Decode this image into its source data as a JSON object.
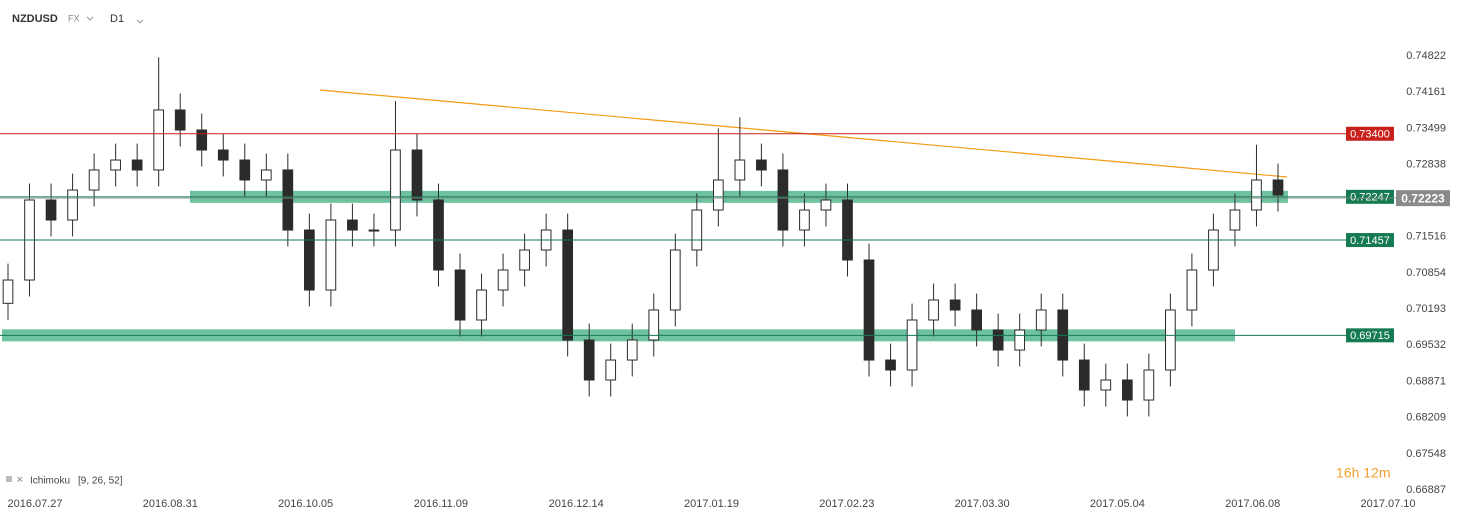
{
  "chart_data": {
    "type": "candlestick",
    "symbol": "NZDUSD",
    "market": "FX",
    "timeframe": "D1",
    "indicator": "Ichimoku",
    "indicator_params": "[9, 26, 52]",
    "timer": "16h 12m",
    "categories": [
      "2016.07.27",
      "2016.08.31",
      "2016.10.05",
      "2016.11.09",
      "2016.12.14",
      "2017.01.19",
      "2017.02.23",
      "2017.03.30",
      "2017.05.04",
      "2017.06.08",
      "2017.07.10"
    ],
    "ylim": [
      0.66887,
      0.75663
    ],
    "yticks": [
      0.74822,
      0.74161,
      0.73499,
      0.72838,
      0.71516,
      0.70854,
      0.70193,
      0.69532,
      0.68871,
      0.68209,
      0.67548,
      0.66887
    ],
    "up_color": "#ffffff",
    "down_color": "#2b2b2b",
    "open": [
      0.703,
      0.70726,
      0.72189,
      0.71823,
      0.72372,
      0.72738,
      0.7292,
      0.72738,
      0.73835,
      0.73469,
      0.73103,
      0.7292,
      0.72555,
      0.72738,
      0.7164,
      0.70543,
      0.71823,
      0.7164,
      0.7164,
      0.73103,
      0.72189,
      0.70909,
      0.69995,
      0.70543,
      0.70909,
      0.71275,
      0.7164,
      0.69629,
      0.68898,
      0.69263,
      0.69629,
      0.70178,
      0.71275,
      0.72006,
      0.72555,
      0.7292,
      0.72738,
      0.7164,
      0.72006,
      0.72189,
      0.71092,
      0.69263,
      0.69081,
      0.69995,
      0.70361,
      0.70178,
      0.69812,
      0.69446,
      0.69812,
      0.70178,
      0.69263,
      0.68715,
      0.68898,
      0.68532,
      0.69081,
      0.70178,
      0.70909,
      0.7164,
      0.72006,
      0.72555
    ],
    "high": [
      0.71026,
      0.72489,
      0.72489,
      0.72672,
      0.73038,
      0.7322,
      0.7322,
      0.748,
      0.74135,
      0.73769,
      0.73403,
      0.7322,
      0.73038,
      0.73038,
      0.7194,
      0.72123,
      0.72123,
      0.7194,
      0.74,
      0.73403,
      0.72489,
      0.71209,
      0.70843,
      0.71209,
      0.71575,
      0.7194,
      0.7194,
      0.69929,
      0.69563,
      0.69929,
      0.70478,
      0.71575,
      0.72306,
      0.735,
      0.737,
      0.7322,
      0.73038,
      0.72306,
      0.72489,
      0.72489,
      0.71392,
      0.69563,
      0.70295,
      0.70661,
      0.70661,
      0.70478,
      0.70112,
      0.70112,
      0.70478,
      0.70478,
      0.69563,
      0.69198,
      0.69198,
      0.69381,
      0.70478,
      0.71209,
      0.7194,
      0.72306,
      0.732,
      0.72855
    ],
    "low": [
      0.7,
      0.70426,
      0.71523,
      0.71523,
      0.72072,
      0.72438,
      0.72438,
      0.72438,
      0.73169,
      0.72803,
      0.7262,
      0.72255,
      0.72255,
      0.7134,
      0.70243,
      0.70243,
      0.7134,
      0.7134,
      0.7134,
      0.71889,
      0.70609,
      0.69695,
      0.69695,
      0.70243,
      0.70609,
      0.70975,
      0.69329,
      0.68598,
      0.68598,
      0.68963,
      0.69329,
      0.69878,
      0.70975,
      0.71706,
      0.72255,
      0.72438,
      0.7134,
      0.7134,
      0.71706,
      0.70792,
      0.68963,
      0.68781,
      0.68781,
      0.69695,
      0.69878,
      0.69512,
      0.69146,
      0.69146,
      0.69512,
      0.68963,
      0.68415,
      0.68415,
      0.68232,
      0.68232,
      0.68781,
      0.69878,
      0.70609,
      0.7134,
      0.71706,
      0.7198
    ],
    "close": [
      0.70726,
      0.72189,
      0.71823,
      0.72372,
      0.72738,
      0.7292,
      0.72738,
      0.73835,
      0.73469,
      0.73103,
      0.7292,
      0.72555,
      0.72738,
      0.7164,
      0.70543,
      0.71823,
      0.7164,
      0.7164,
      0.73103,
      0.72189,
      0.70909,
      0.69995,
      0.70543,
      0.70909,
      0.71275,
      0.7164,
      0.69629,
      0.68898,
      0.69263,
      0.69629,
      0.70178,
      0.71275,
      0.72006,
      0.72555,
      0.7292,
      0.72738,
      0.7164,
      0.72006,
      0.72189,
      0.71092,
      0.69263,
      0.69081,
      0.69995,
      0.70361,
      0.70178,
      0.69812,
      0.69446,
      0.69812,
      0.70178,
      0.69263,
      0.68715,
      0.68898,
      0.68532,
      0.69081,
      0.70178,
      0.70909,
      0.7164,
      0.72006,
      0.72555,
      0.7228
    ],
    "levels": [
      {
        "value": 0.734,
        "label": "0.73400",
        "color": "#c8211b"
      },
      {
        "value": 0.72247,
        "color": "#167a52",
        "zone": true
      },
      {
        "value": 0.71457,
        "color": "#167a52"
      },
      {
        "value": 0.69715,
        "color": "#167a52",
        "zone": true
      }
    ],
    "last": 0.72223,
    "last_color": "#8a8a8a",
    "zone_color": "#3fae80",
    "trendline": [
      0.742,
      0.7261
    ],
    "trendline_color": "#f39c12"
  }
}
